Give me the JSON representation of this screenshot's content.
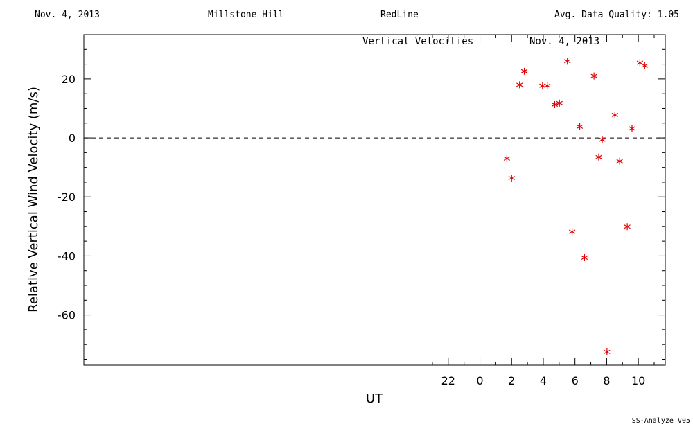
{
  "header": {
    "date": "Nov. 4, 2013",
    "site": "Millstone Hill",
    "instrument": "RedLine",
    "quality": "Avg. Data Quality: 1.05"
  },
  "footer": {
    "version": "SS-Analyze V05"
  },
  "chart_data": {
    "type": "scatter",
    "title": "Vertical Velocities",
    "subtitle": "Nov. 4, 2013",
    "xlabel": "UT",
    "ylabel": "Relative Vertical Wind Velocity (m/s)",
    "xlim": [
      -25,
      11.7
    ],
    "ylim": [
      -77,
      35
    ],
    "x_ticks": [
      22,
      0,
      2,
      4,
      6,
      8,
      10
    ],
    "y_ticks": [
      20,
      0,
      -20,
      -40,
      -60
    ],
    "zero_line": true,
    "marker_color": "#e00000",
    "x": [
      1.7,
      2.0,
      2.5,
      2.8,
      3.95,
      4.25,
      4.72,
      5.02,
      5.52,
      5.82,
      6.3,
      6.6,
      7.2,
      7.5,
      7.72,
      8.02,
      8.52,
      8.82,
      9.3,
      9.6,
      10.1,
      10.4
    ],
    "y": [
      -7,
      -13.6,
      18,
      22.6,
      17.7,
      17.7,
      11.3,
      11.8,
      26,
      -31.8,
      3.8,
      -40.6,
      21,
      -6.5,
      -0.6,
      -72.5,
      7.8,
      -7.9,
      -30.1,
      3.2,
      25.5,
      24.5
    ]
  }
}
